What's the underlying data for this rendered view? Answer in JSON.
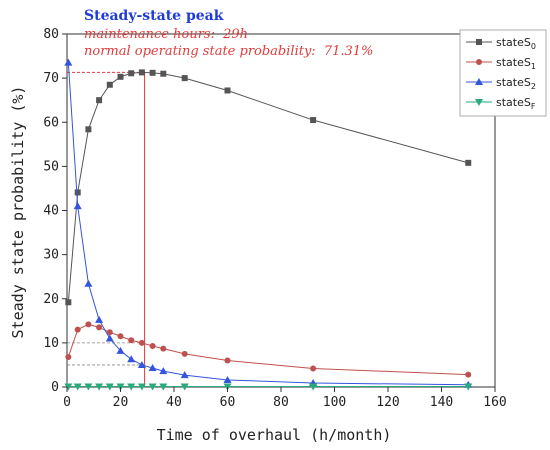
{
  "chart_data": {
    "type": "line",
    "xlabel": "Time of overhaul (h/month)",
    "ylabel": "Steady state probability (%)",
    "xlim": [
      0,
      160
    ],
    "ylim": [
      0,
      80
    ],
    "x_ticks": [
      "0",
      "20",
      "40",
      "60",
      "80",
      "100",
      "120",
      "140",
      "160"
    ],
    "y_ticks": [
      "0",
      "10",
      "20",
      "30",
      "40",
      "50",
      "60",
      "70",
      "80"
    ],
    "grid": false,
    "legend_position": "top-right",
    "series": [
      {
        "name": "stateS0",
        "legend_base": "state",
        "legend_sub": "S",
        "legend_index": "0",
        "color": "#555555",
        "marker": "square",
        "x": [
          0.5,
          4,
          8,
          12,
          16,
          20,
          24,
          28,
          32,
          36,
          44,
          60,
          92,
          150
        ],
        "y": [
          19.2,
          44.1,
          58.4,
          65.0,
          68.5,
          70.3,
          71.1,
          71.3,
          71.2,
          71.0,
          70.0,
          67.2,
          60.5,
          50.8
        ]
      },
      {
        "name": "stateS1",
        "legend_base": "state",
        "legend_sub": "S",
        "legend_index": "1",
        "color": "#c0504d",
        "marker": "circle",
        "x": [
          0.5,
          4,
          8,
          12,
          16,
          20,
          24,
          28,
          32,
          36,
          44,
          60,
          92,
          150
        ],
        "y": [
          6.8,
          13.0,
          14.2,
          13.5,
          12.4,
          11.5,
          10.6,
          10.0,
          9.3,
          8.7,
          7.5,
          6.0,
          4.2,
          2.8
        ]
      },
      {
        "name": "stateS2",
        "legend_base": "state",
        "legend_sub": "S",
        "legend_index": "2",
        "color": "#3355dd",
        "marker": "triangle-up",
        "x": [
          0.5,
          4,
          8,
          12,
          16,
          20,
          24,
          28,
          32,
          36,
          44,
          60,
          92,
          150
        ],
        "y": [
          73.5,
          41.0,
          23.4,
          15.2,
          11.0,
          8.2,
          6.3,
          5.0,
          4.3,
          3.6,
          2.7,
          1.6,
          0.9,
          0.5
        ]
      },
      {
        "name": "stateSF",
        "legend_base": "state",
        "legend_sub": "S",
        "legend_index": "F",
        "color": "#2aaa7a",
        "marker": "triangle-down",
        "x": [
          0.5,
          4,
          8,
          12,
          16,
          20,
          24,
          28,
          32,
          36,
          44,
          60,
          92,
          150
        ],
        "y": [
          0.1,
          0.1,
          0.1,
          0.1,
          0.1,
          0.1,
          0.1,
          0.1,
          0.1,
          0.1,
          0.1,
          0.1,
          0.1,
          0.1
        ]
      }
    ],
    "annotations": {
      "title": "Steady-state peak",
      "line1_label": "maintenance hours:",
      "line1_value": "29h",
      "line2_label": "normal operating state probability:",
      "line2_value": "71.31%",
      "peak_x": 29,
      "peak_y": 71.31,
      "guide_color": "#e23b3b",
      "reference_levels": [
        10,
        5
      ]
    }
  }
}
